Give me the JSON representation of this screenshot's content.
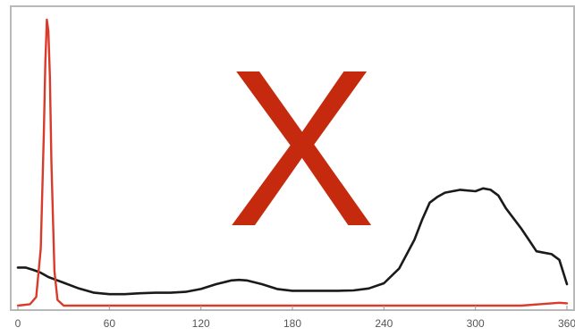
{
  "chart_data": {
    "type": "line",
    "xlim": [
      0,
      360
    ],
    "ylim": [
      0,
      1
    ],
    "grid": false,
    "legend": "none",
    "x_ticks": [
      0,
      60,
      120,
      180,
      240,
      300,
      360
    ],
    "x_tick_labels": [
      "0",
      "60",
      "120",
      "180",
      "240",
      "300",
      "360"
    ],
    "annotation": {
      "text": "X",
      "color": "#c62a0e"
    },
    "series": [
      {
        "color": "#1a1a1a",
        "points": [
          [
            0,
            0.133
          ],
          [
            5,
            0.133
          ],
          [
            10,
            0.125
          ],
          [
            15,
            0.115
          ],
          [
            20,
            0.1
          ],
          [
            25,
            0.09
          ],
          [
            30,
            0.08
          ],
          [
            40,
            0.06
          ],
          [
            50,
            0.045
          ],
          [
            60,
            0.04
          ],
          [
            70,
            0.04
          ],
          [
            80,
            0.043
          ],
          [
            90,
            0.045
          ],
          [
            100,
            0.045
          ],
          [
            110,
            0.048
          ],
          [
            120,
            0.058
          ],
          [
            130,
            0.075
          ],
          [
            140,
            0.088
          ],
          [
            145,
            0.09
          ],
          [
            150,
            0.088
          ],
          [
            160,
            0.075
          ],
          [
            170,
            0.058
          ],
          [
            180,
            0.052
          ],
          [
            190,
            0.052
          ],
          [
            200,
            0.052
          ],
          [
            210,
            0.052
          ],
          [
            220,
            0.053
          ],
          [
            230,
            0.06
          ],
          [
            240,
            0.078
          ],
          [
            250,
            0.13
          ],
          [
            260,
            0.23
          ],
          [
            265,
            0.3
          ],
          [
            270,
            0.36
          ],
          [
            275,
            0.38
          ],
          [
            280,
            0.395
          ],
          [
            290,
            0.405
          ],
          [
            300,
            0.4
          ],
          [
            305,
            0.41
          ],
          [
            310,
            0.405
          ],
          [
            315,
            0.385
          ],
          [
            320,
            0.34
          ],
          [
            330,
            0.27
          ],
          [
            335,
            0.23
          ],
          [
            340,
            0.19
          ],
          [
            345,
            0.185
          ],
          [
            350,
            0.18
          ],
          [
            355,
            0.16
          ],
          [
            360,
            0.075
          ]
        ]
      },
      {
        "color": "#d93a2a",
        "points": [
          [
            0,
            0.0
          ],
          [
            8,
            0.005
          ],
          [
            12,
            0.03
          ],
          [
            15,
            0.2
          ],
          [
            17,
            0.6
          ],
          [
            18,
            0.85
          ],
          [
            19,
            1.0
          ],
          [
            20,
            0.96
          ],
          [
            21,
            0.8
          ],
          [
            22,
            0.5
          ],
          [
            24,
            0.12
          ],
          [
            26,
            0.02
          ],
          [
            30,
            0.0
          ],
          [
            120,
            0.0
          ],
          [
            240,
            0.0
          ],
          [
            330,
            0.0
          ],
          [
            345,
            0.006
          ],
          [
            355,
            0.01
          ],
          [
            360,
            0.008
          ]
        ]
      }
    ]
  }
}
